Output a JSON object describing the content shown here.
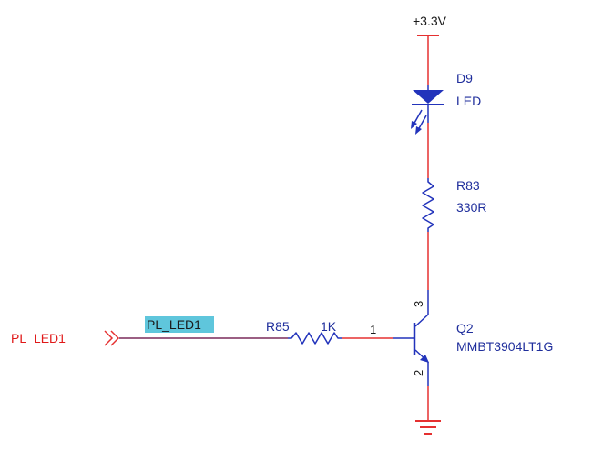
{
  "colors": {
    "wire_red": "#e53030",
    "wire_purple": "#7a2a5a",
    "symbol_blue": "#2233bb",
    "label_blue": "#1f2e9c",
    "label_red": "#e01818",
    "net_highlight": "#5fc6dc"
  },
  "power": {
    "label": "+3.3V"
  },
  "led": {
    "designator": "D9",
    "value": "LED"
  },
  "resistor_r83": {
    "designator": "R83",
    "value": "330R"
  },
  "resistor_r85": {
    "designator": "R85",
    "value": "1K"
  },
  "transistor": {
    "designator": "Q2",
    "part": "MMBT3904LT1G",
    "pin_base": "1",
    "pin_emitter": "2",
    "pin_collector": "3"
  },
  "port": {
    "name": "PL_LED1"
  },
  "net": {
    "label": "PL_LED1"
  },
  "icons": {
    "ground": "ground-icon",
    "power_bar": "power-bar-icon",
    "led_diode": "led-diode-icon",
    "port_arrow": "port-arrow-icon"
  }
}
